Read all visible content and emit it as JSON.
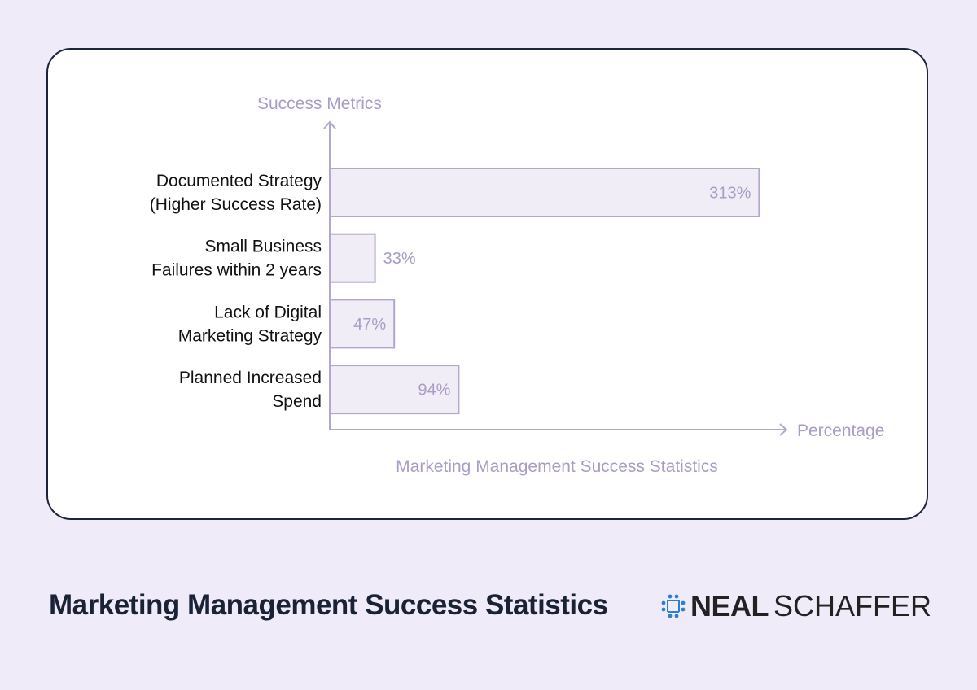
{
  "chart_data": {
    "type": "bar",
    "orientation": "horizontal",
    "title": "Marketing Management Success Statistics",
    "ylabel": "Success Metrics",
    "xlabel": "Percentage",
    "categories": [
      [
        "Documented Strategy",
        "(Higher Success Rate)"
      ],
      [
        "Small Business",
        "Failures within 2 years"
      ],
      [
        "Lack of Digital",
        "Marketing Strategy"
      ],
      [
        "Planned Increased",
        "Spend"
      ]
    ],
    "values": [
      313,
      33,
      47,
      94
    ],
    "data_labels": [
      "313%",
      "33%",
      "47%",
      "94%"
    ],
    "xlim": [
      0,
      330
    ],
    "grid": false,
    "colors": {
      "bar_fill": "#f0edf6",
      "bar_stroke": "#b3a7cb",
      "axis": "#b3a7cb",
      "value_text": "#a99dc5",
      "category_text": "#111111"
    }
  },
  "footer": {
    "title": "Marketing Management Success Statistics",
    "logo_bold": "NEAL",
    "logo_light": "SCHAFFER",
    "logo_icon": "people-circle-icon"
  }
}
